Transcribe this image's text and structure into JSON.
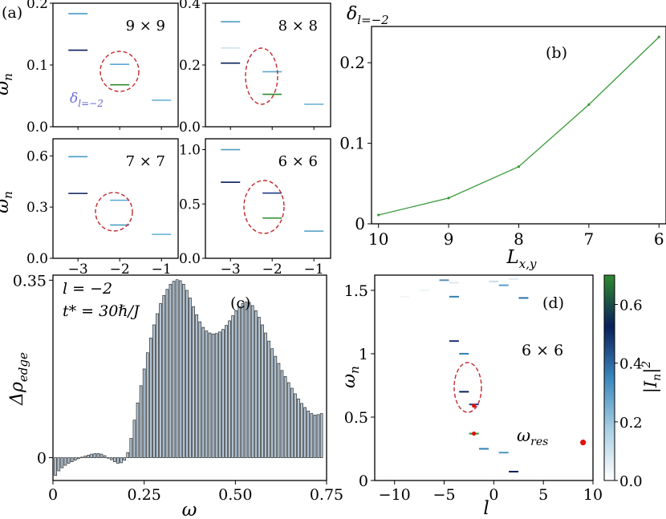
{
  "chart_data": [
    {
      "panel": "a",
      "type": "scatter",
      "marker": "short horizontal dash",
      "panel_label": "(a)",
      "ylabel": "ω_n",
      "xticks": [
        "−3",
        "−2",
        "−1"
      ],
      "subpanels": [
        {
          "size_label": "9 × 9",
          "ylim": [
            0,
            0.2
          ],
          "yticks": [
            "0.0",
            "0.1",
            "0.2"
          ],
          "annotation": "δl=−2",
          "points": [
            [
              -3,
              0.183,
              "#4a9cc4"
            ],
            [
              -3,
              0.124,
              "#0a1f5a"
            ],
            [
              -2,
              0.101,
              "#5aa8d0"
            ],
            [
              -2,
              0.068,
              "#2e8b2e"
            ],
            [
              -1,
              0.043,
              "#6bb4d8"
            ]
          ]
        },
        {
          "size_label": "8 × 8",
          "ylim": [
            0,
            0.4
          ],
          "yticks": [
            "0.0",
            "0.2",
            "0.4"
          ],
          "points": [
            [
              -3,
              0.34,
              "#4a9cc4"
            ],
            [
              -3,
              0.255,
              "#cfe4ef"
            ],
            [
              -3,
              0.206,
              "#0a1f5a"
            ],
            [
              -2,
              0.178,
              "#5aa8d0"
            ],
            [
              -2,
              0.105,
              "#2e8b2e"
            ],
            [
              -1,
              0.073,
              "#6bb4d8"
            ]
          ]
        },
        {
          "size_label": "7 × 7",
          "ylim": [
            0,
            0.7
          ],
          "yticks": [
            "0.0",
            "0.3",
            "0.6"
          ],
          "points": [
            [
              -3,
              0.595,
              "#4a9cc4"
            ],
            [
              -3,
              0.38,
              "#0a1f5a"
            ],
            [
              -2,
              0.34,
              "#5aa8d0"
            ],
            [
              -2,
              0.195,
              "#3d9abf"
            ],
            [
              -1,
              0.14,
              "#6bb4d8"
            ]
          ]
        },
        {
          "size_label": "6 × 6",
          "ylim": [
            0,
            1.1
          ],
          "yticks": [
            "0.0",
            "0.5",
            "1.0"
          ],
          "points": [
            [
              -3,
              1.0,
              "#4a9cc4"
            ],
            [
              -3,
              0.7,
              "#0a1f5a"
            ],
            [
              -2,
              0.6,
              "#1c3f8a"
            ],
            [
              -2,
              0.37,
              "#2e8b2e"
            ],
            [
              -1,
              0.25,
              "#4a9cc4"
            ]
          ]
        }
      ]
    },
    {
      "panel": "b",
      "type": "line",
      "panel_label": "(b)",
      "ylabel": "δl=−2",
      "xlabel": "Lx,y",
      "x": [
        10,
        9,
        8,
        7,
        6
      ],
      "y": [
        0.011,
        0.032,
        0.071,
        0.148,
        0.232
      ],
      "xlim": [
        10.1,
        5.9
      ],
      "ylim": [
        0,
        0.245
      ],
      "xticks": [
        "10",
        "9",
        "8",
        "7",
        "6"
      ],
      "yticks": [
        "0",
        "0.1",
        "0.2"
      ],
      "color": "#3a9a3a"
    },
    {
      "panel": "c",
      "type": "bar",
      "panel_label": "(c)",
      "annotations": [
        "l = −2",
        "t* = 30ℏ/J"
      ],
      "xlabel": "ω",
      "ylabel": "Δρedge",
      "xlim": [
        0,
        0.75
      ],
      "ylim": [
        -0.045,
        0.36
      ],
      "xticks": [
        "0",
        "0.25",
        "0.50",
        "0.75"
      ],
      "yticks": [
        "0",
        "0.35"
      ],
      "bar_color": "#b3c6d6",
      "x": [
        0.007,
        0.016,
        0.025,
        0.034,
        0.043,
        0.052,
        0.061,
        0.07,
        0.079,
        0.088,
        0.097,
        0.106,
        0.115,
        0.124,
        0.133,
        0.142,
        0.151,
        0.16,
        0.169,
        0.178,
        0.187,
        0.196,
        0.205,
        0.214,
        0.223,
        0.232,
        0.241,
        0.25,
        0.259,
        0.268,
        0.277,
        0.286,
        0.295,
        0.304,
        0.313,
        0.322,
        0.331,
        0.34,
        0.349,
        0.358,
        0.367,
        0.376,
        0.385,
        0.394,
        0.403,
        0.412,
        0.421,
        0.43,
        0.439,
        0.448,
        0.457,
        0.466,
        0.475,
        0.484,
        0.493,
        0.502,
        0.511,
        0.52,
        0.529,
        0.538,
        0.547,
        0.556,
        0.565,
        0.574,
        0.583,
        0.592,
        0.601,
        0.61,
        0.619,
        0.628,
        0.637,
        0.646,
        0.655,
        0.664,
        0.673,
        0.682,
        0.691,
        0.7,
        0.709,
        0.718,
        0.727,
        0.736
      ],
      "values": [
        -0.035,
        -0.026,
        -0.02,
        -0.015,
        -0.011,
        -0.008,
        -0.005,
        -0.002,
        0.001,
        0.003,
        0.005,
        0.007,
        0.008,
        0.008,
        0.007,
        0.004,
        0.0,
        -0.004,
        -0.008,
        -0.011,
        -0.01,
        -0.005,
        0.01,
        0.038,
        0.074,
        0.108,
        0.142,
        0.175,
        0.207,
        0.236,
        0.262,
        0.284,
        0.304,
        0.32,
        0.332,
        0.342,
        0.348,
        0.351,
        0.349,
        0.342,
        0.33,
        0.315,
        0.298,
        0.282,
        0.268,
        0.257,
        0.25,
        0.246,
        0.244,
        0.245,
        0.248,
        0.253,
        0.261,
        0.27,
        0.28,
        0.29,
        0.298,
        0.304,
        0.307,
        0.306,
        0.3,
        0.29,
        0.277,
        0.262,
        0.246,
        0.23,
        0.215,
        0.2,
        0.186,
        0.172,
        0.16,
        0.148,
        0.137,
        0.126,
        0.116,
        0.107,
        0.099,
        0.092,
        0.087,
        0.084,
        0.085,
        0.087
      ]
    },
    {
      "panel": "d",
      "type": "scatter",
      "marker": "short horizontal dash colored by |I_n|^2",
      "panel_label": "(d)",
      "size_label": "6 × 6",
      "xlabel": "l",
      "ylabel": "ω_n",
      "xlim": [
        -12,
        10
      ],
      "ylim": [
        0,
        1.62
      ],
      "xticks": [
        "−10",
        "−5",
        "0",
        "5",
        "10"
      ],
      "yticks": [
        "0",
        "0.5",
        "1",
        "1.5"
      ],
      "colorbar": {
        "label": "|I_n|²",
        "min": 0.0,
        "max": 0.7,
        "ticks": [
          "0.0",
          "0.2",
          "0.4",
          "0.6"
        ]
      },
      "legend": "ω_res",
      "resonance_color": "#e01010",
      "points": [
        {
          "l": -5,
          "w": 1.58,
          "c": "#5c8fb0"
        },
        {
          "l": -4,
          "w": 1.45,
          "c": "#2f7fb5"
        },
        {
          "l": -4,
          "w": 1.1,
          "c": "#1a2f70"
        },
        {
          "l": -3,
          "w": 1.0,
          "c": "#2f7fb5"
        },
        {
          "l": -3,
          "w": 0.7,
          "c": "#0a1f5a"
        },
        {
          "l": -2,
          "w": 0.6,
          "c": "#1c3f8a"
        },
        {
          "l": -2,
          "w": 0.37,
          "c": "#2e8b2e"
        },
        {
          "l": -1,
          "w": 0.25,
          "c": "#2f7fb5"
        },
        {
          "l": 0,
          "w": 1.57,
          "c": "#c8dbe6"
        },
        {
          "l": 1,
          "w": 1.54,
          "c": "#5aa0c8"
        },
        {
          "l": 1,
          "w": 0.22,
          "c": "#4a96c0"
        },
        {
          "l": 2,
          "w": 0.07,
          "c": "#0a1f5a"
        },
        {
          "l": 2,
          "w": 1.59,
          "c": "#e0ebf2"
        },
        {
          "l": 3,
          "w": 1.44,
          "c": "#2a6fa8"
        },
        {
          "l": -7,
          "w": 1.5,
          "c": "#eef4f7"
        },
        {
          "l": -9,
          "w": 1.45,
          "c": "#f2f6f8"
        },
        {
          "l": -4,
          "w": 1.56,
          "c": "#dfe9ef"
        }
      ],
      "resonances": [
        {
          "l": -2,
          "w": 0.59
        },
        {
          "l": -2,
          "w": 0.37
        }
      ],
      "legend_marker": {
        "l": 9,
        "w": 0.3
      }
    }
  ]
}
